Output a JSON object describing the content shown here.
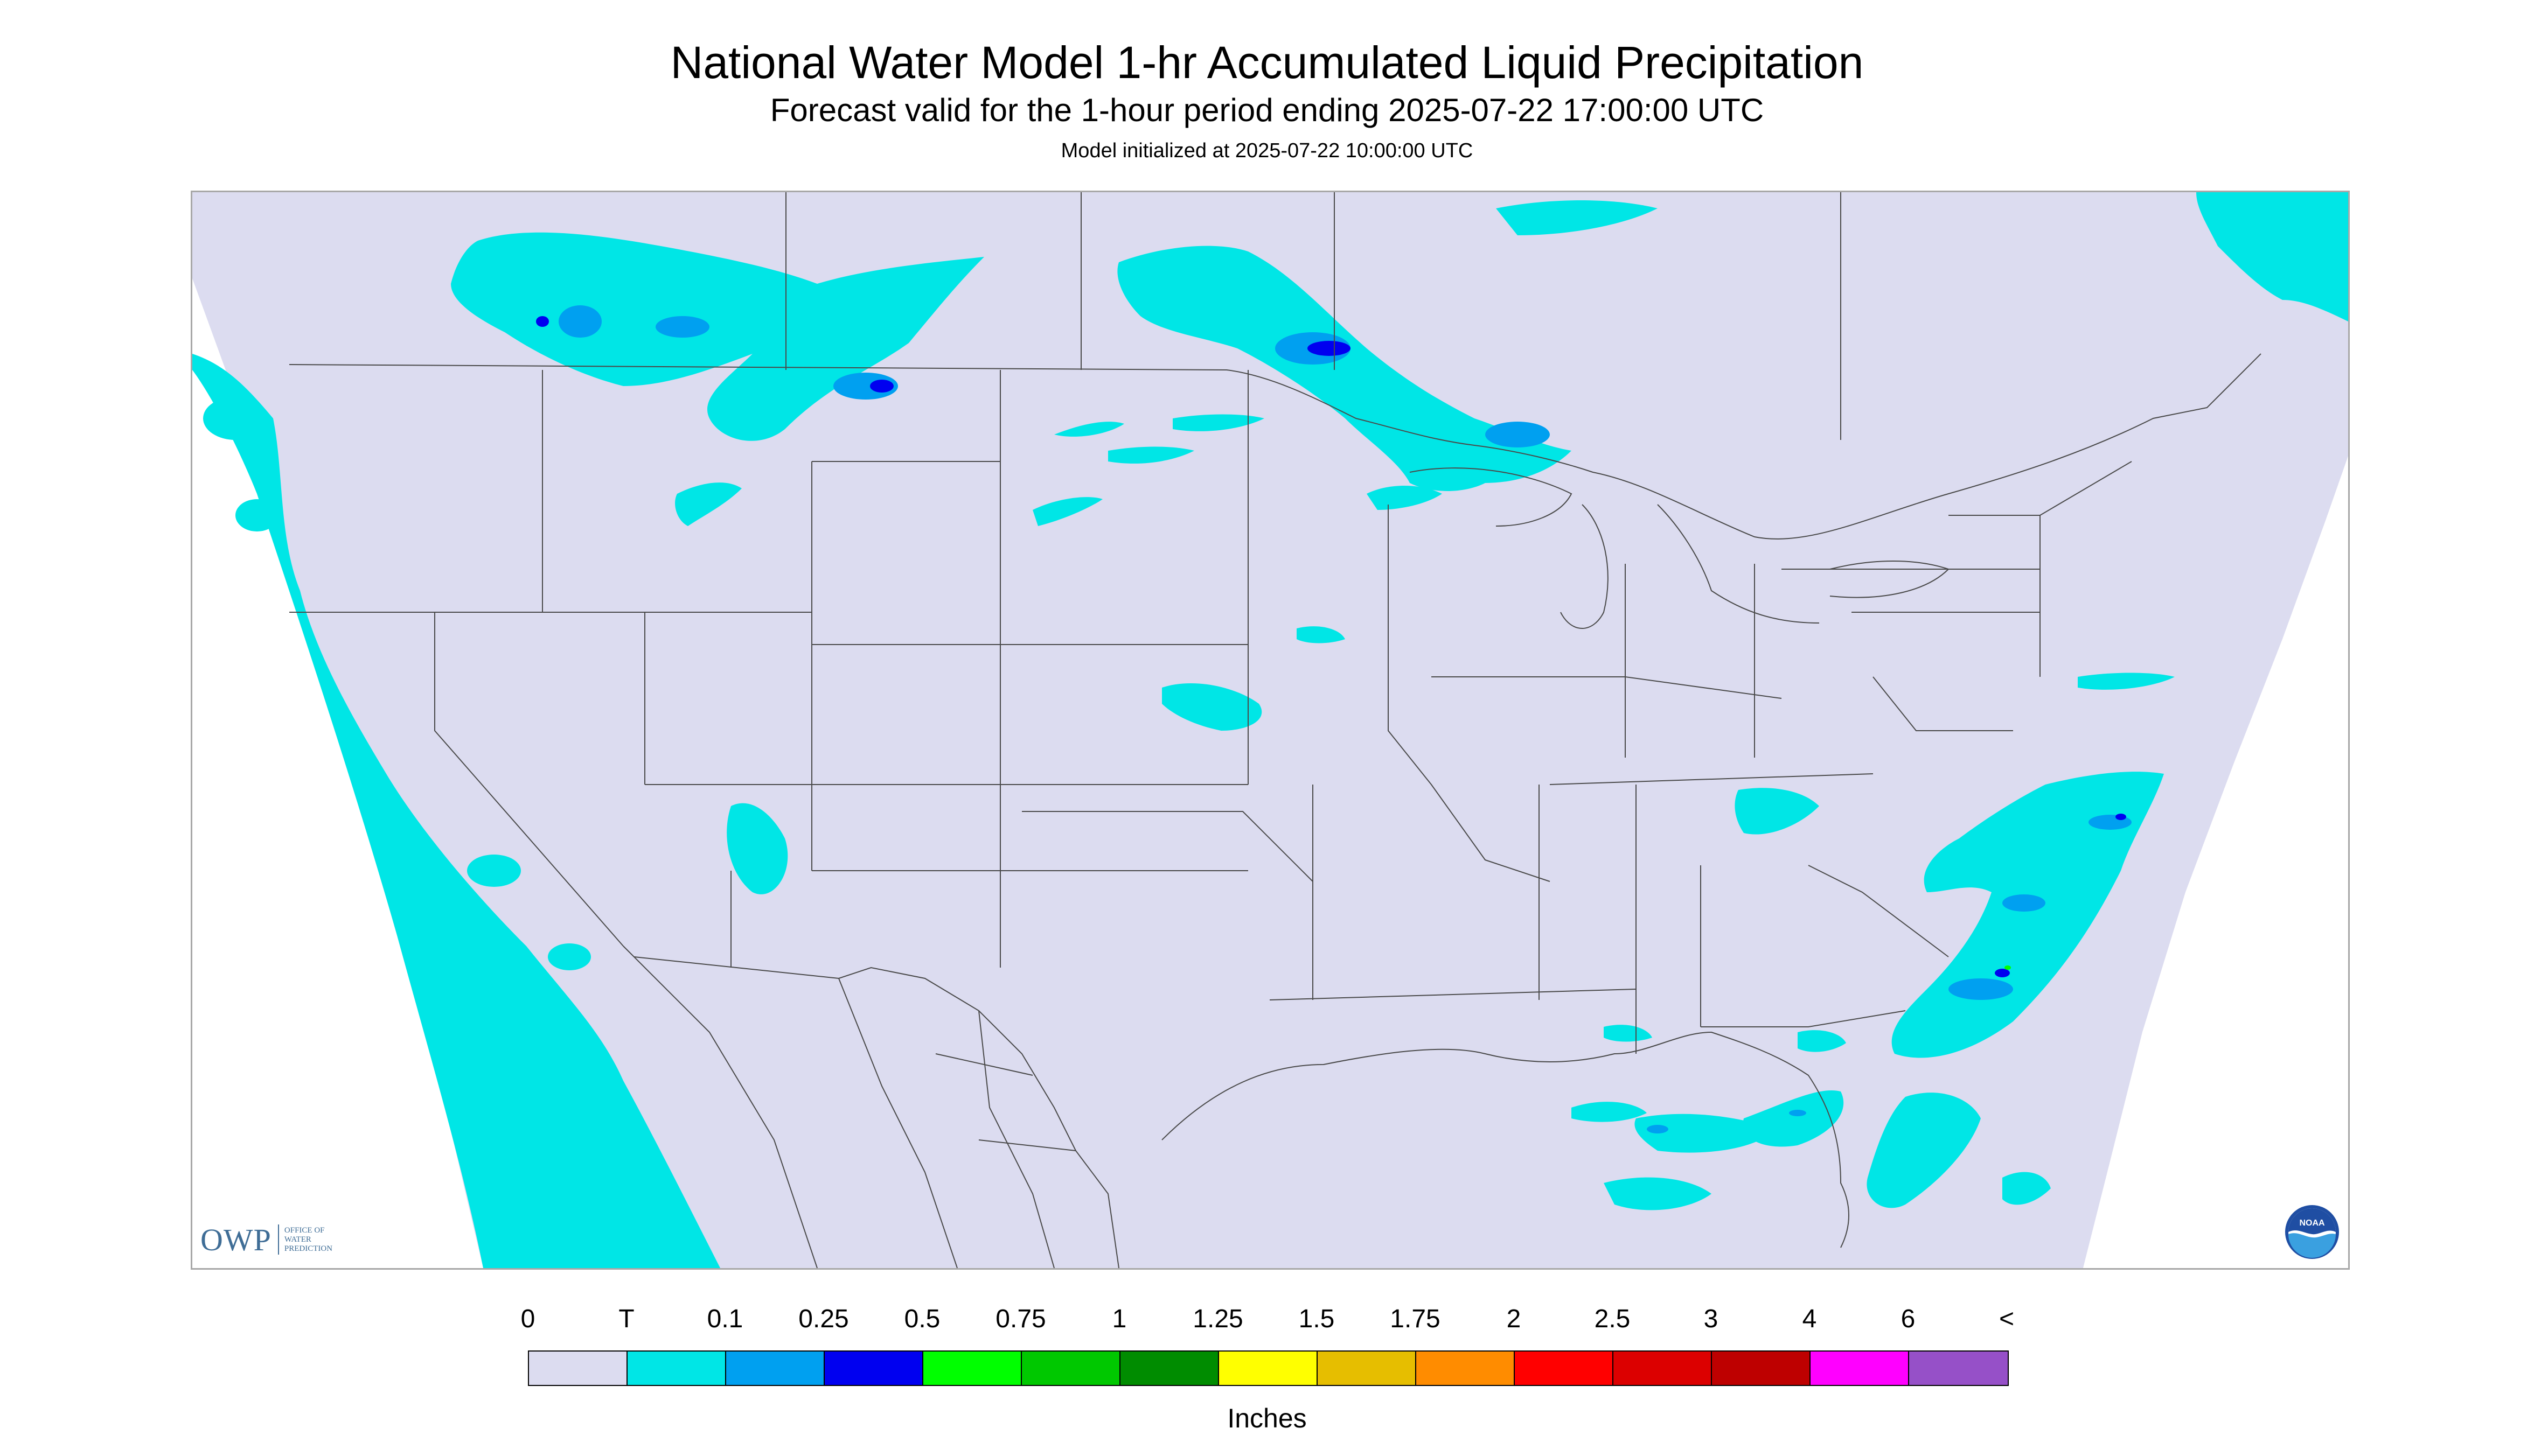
{
  "title": "National Water Model 1-hr Accumulated Liquid Precipitation",
  "subtitle": "Forecast valid for the 1-hour period ending 2025-07-22 17:00:00 UTC",
  "model_init": "Model initialized at 2025-07-22 10:00:00 UTC",
  "logos": {
    "owp_main": "OWP",
    "owp_sub": "OFFICE OF\nWATER\nPREDICTION",
    "noaa": "NOAA"
  },
  "legend": {
    "labels": [
      "0",
      "T",
      "0.1",
      "0.25",
      "0.5",
      "0.75",
      "1",
      "1.25",
      "1.5",
      "1.75",
      "2",
      "2.5",
      "3",
      "4",
      "6",
      "<"
    ],
    "colors": [
      "#dcdcf0",
      "#00e6e6",
      "#00a0f0",
      "#0000f0",
      "#00ff00",
      "#00c800",
      "#008c00",
      "#ffff00",
      "#e6be00",
      "#ff8c00",
      "#ff0000",
      "#dc0000",
      "#be0000",
      "#ff00ff",
      "#9650c8"
    ],
    "units": "Inches"
  },
  "map": {
    "land_color": "#dcdcf0",
    "outside_domain_color": "#ffffff",
    "precip_trace_color": "#00e6e6",
    "precip_light_color": "#00a0f0",
    "precip_mod_color": "#0000f0",
    "border_color": "#4a4a4a"
  }
}
